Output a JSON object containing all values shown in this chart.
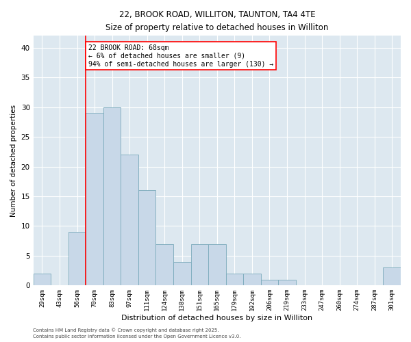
{
  "title_line1": "22, BROOK ROAD, WILLITON, TAUNTON, TA4 4TE",
  "title_line2": "Size of property relative to detached houses in Williton",
  "xlabel": "Distribution of detached houses by size in Williton",
  "ylabel": "Number of detached properties",
  "categories": [
    "29sqm",
    "43sqm",
    "56sqm",
    "70sqm",
    "83sqm",
    "97sqm",
    "111sqm",
    "124sqm",
    "138sqm",
    "151sqm",
    "165sqm",
    "179sqm",
    "192sqm",
    "206sqm",
    "219sqm",
    "233sqm",
    "247sqm",
    "260sqm",
    "274sqm",
    "287sqm",
    "301sqm"
  ],
  "values": [
    2,
    0,
    9,
    29,
    30,
    22,
    16,
    7,
    4,
    7,
    7,
    2,
    2,
    1,
    1,
    0,
    0,
    0,
    0,
    0,
    3
  ],
  "bar_color": "#c8d8e8",
  "bar_edge_color": "#7aaabb",
  "red_line_x": 3,
  "annotation_text": "22 BROOK ROAD: 68sqm\n← 6% of detached houses are smaller (9)\n94% of semi-detached houses are larger (130) →",
  "annotation_box_color": "white",
  "annotation_box_edge": "red",
  "ylim": [
    0,
    42
  ],
  "yticks": [
    0,
    5,
    10,
    15,
    20,
    25,
    30,
    35,
    40
  ],
  "background_color": "#dde8f0",
  "grid_color": "white",
  "footer_line1": "Contains HM Land Registry data © Crown copyright and database right 2025.",
  "footer_line2": "Contains public sector information licensed under the Open Government Licence v3.0."
}
